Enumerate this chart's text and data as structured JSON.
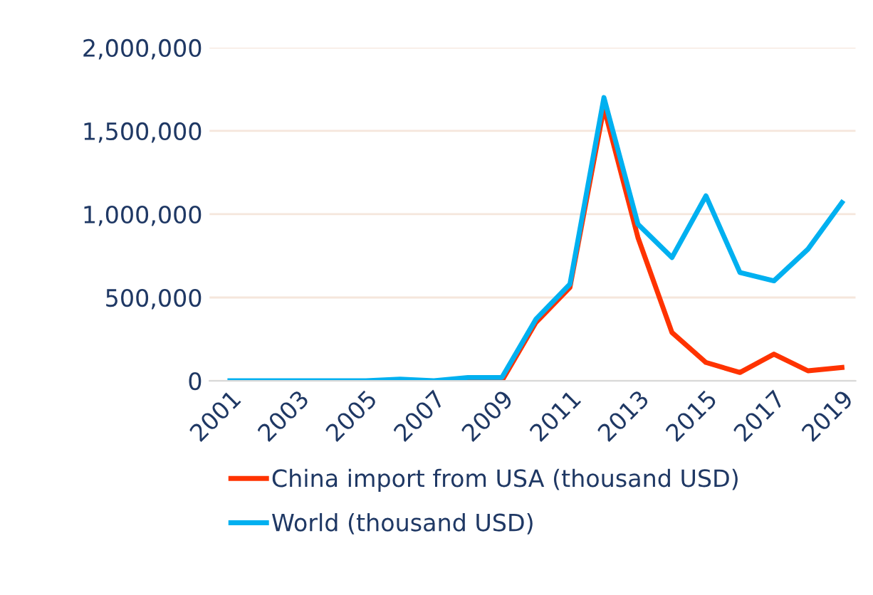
{
  "chart_data": {
    "type": "line",
    "categories": [
      "2001",
      null,
      "2003",
      null,
      "2005",
      null,
      "2007",
      null,
      "2009",
      null,
      "2011",
      null,
      "2013",
      null,
      "2015",
      null,
      "2017",
      null,
      "2019"
    ],
    "series": [
      {
        "name": "China import from USA (thousand USD)",
        "color": "#ff3300",
        "values": [
          null,
          null,
          null,
          null,
          null,
          null,
          null,
          0,
          0,
          350000,
          560000,
          1640000,
          860000,
          290000,
          110000,
          50000,
          160000,
          60000,
          80000
        ]
      },
      {
        "name": "World (thousand USD)",
        "color": "#00b0f0",
        "values": [
          0,
          0,
          0,
          0,
          0,
          10000,
          0,
          20000,
          20000,
          370000,
          580000,
          1700000,
          940000,
          740000,
          1110000,
          650000,
          600000,
          790000,
          1070000
        ]
      }
    ],
    "ylim": [
      0,
      2000000
    ],
    "yticks": [
      {
        "value": 0,
        "label": "0"
      },
      {
        "value": 500000,
        "label": "500,000"
      },
      {
        "value": 1000000,
        "label": "1,000,000"
      },
      {
        "value": 1500000,
        "label": "1,500,000"
      },
      {
        "value": 2000000,
        "label": "2,000,000"
      }
    ],
    "grid": "y",
    "legend": "bottom",
    "marker": "none",
    "line_style": "solid"
  }
}
